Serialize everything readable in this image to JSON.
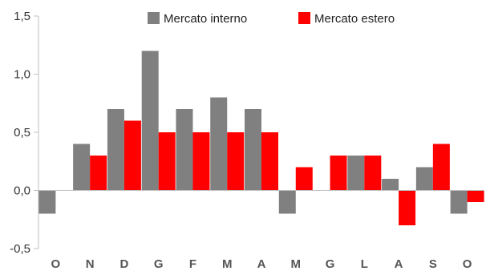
{
  "chart_data": {
    "type": "bar",
    "title": "",
    "xlabel": "",
    "ylabel": "",
    "categories": [
      "O",
      "N",
      "D",
      "G",
      "F",
      "M",
      "A",
      "M",
      "G",
      "L",
      "A",
      "S",
      "O"
    ],
    "series": [
      {
        "name": "Mercato interno",
        "color": "#808080",
        "values": [
          -0.2,
          0.4,
          0.7,
          1.2,
          0.7,
          0.8,
          0.7,
          -0.2,
          0.0,
          0.3,
          0.1,
          0.2,
          -0.2
        ]
      },
      {
        "name": "Mercato estero",
        "color": "#ff0000",
        "values": [
          0.0,
          0.3,
          0.6,
          0.5,
          0.5,
          0.5,
          0.5,
          0.2,
          0.3,
          0.3,
          -0.3,
          0.4,
          -0.1
        ]
      }
    ],
    "ylim": [
      -0.5,
      1.5
    ],
    "yticks": [
      -0.5,
      0.0,
      0.5,
      1.0,
      1.5
    ],
    "ytick_labels": [
      "-0,5",
      "0,0",
      "0,5",
      "1,0",
      "1,5"
    ],
    "grid": false,
    "legend_position": "top"
  }
}
